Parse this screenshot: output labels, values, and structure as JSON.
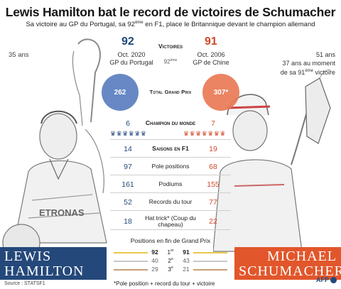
{
  "header": {
    "title": "Lewis Hamilton bat le record de victoires de Schumacher",
    "subtitle_pre": "Sa victoire au GP du Portugal, sa 92",
    "subtitle_sup": "ème",
    "subtitle_post": " en F1, place le Britannique devant le champion allemand"
  },
  "hamilton": {
    "age": "35 ans",
    "victories": "92",
    "date": "Oct. 2020",
    "gp": "GP du Portugal",
    "total_gp": "262",
    "name_line1": "LEWIS",
    "name_line2": "HAMILTON",
    "color": "#24487a"
  },
  "schumacher": {
    "age_line1": "51 ans",
    "age_line2": "37 ans au moment",
    "age_line3_pre": "de sa 91",
    "age_line3_sup": "ème",
    "age_line3_post": " victoire",
    "victories": "91",
    "date": "Oct. 2006",
    "gp": "GP de Chine",
    "total_gp": "307*",
    "name_line1": "MICHAEL",
    "name_line2": "SCHUMACHER",
    "color": "#e2562b"
  },
  "center": {
    "victoires_label": "Victoires",
    "mid_92": "92",
    "mid_92_sup": "ème",
    "total_gp_label": "Total Grand Prix"
  },
  "stats": [
    {
      "label": "Champion du monde",
      "left": "6",
      "right": "7",
      "caps": true
    },
    {
      "label": "Saisons en F1",
      "left": "14",
      "right": "19",
      "caps": true
    },
    {
      "label": "Pole positions",
      "left": "97",
      "right": "68",
      "caps": false
    },
    {
      "label": "Podiums",
      "left": "161",
      "right": "155",
      "caps": false
    },
    {
      "label": "Records du tour",
      "left": "52",
      "right": "77",
      "caps": false
    },
    {
      "label": "Hat trick* (Coup du chapeau)",
      "left": "18",
      "right": "22",
      "caps": false
    }
  ],
  "trophy_icons": {
    "left": "♛♛♛♛♛♛",
    "right": "♛♛♛♛♛♛♛"
  },
  "finishes": {
    "title": "Positions en fin de Grand Prix",
    "rows": [
      {
        "pos": "1",
        "sup": "er",
        "left": "92",
        "right": "91"
      },
      {
        "pos": "2",
        "sup": "e",
        "left": "40",
        "right": "43"
      },
      {
        "pos": "3",
        "sup": "e",
        "left": "29",
        "right": "21"
      }
    ]
  },
  "footer": {
    "source": "Source : STATSF1",
    "footnote": "*Pole position + record du tour + victoire",
    "logo": "AFP"
  }
}
